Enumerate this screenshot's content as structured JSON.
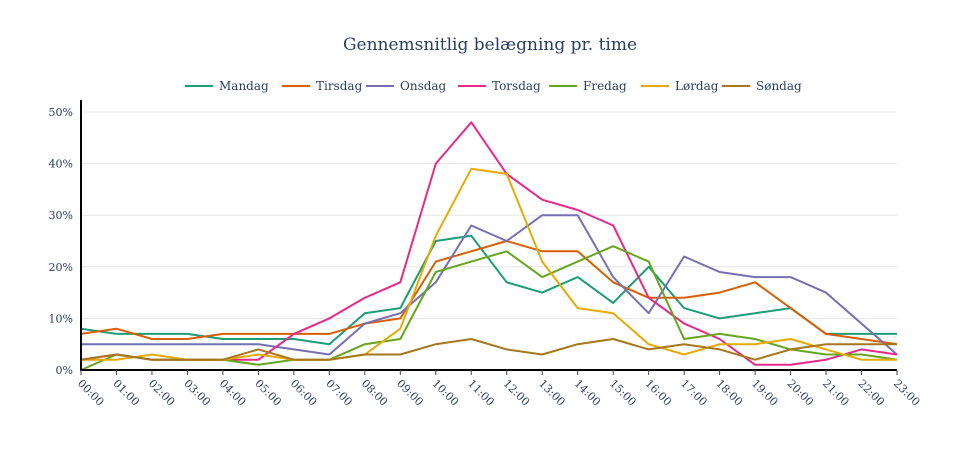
{
  "chart_data": {
    "type": "line",
    "title": "Gennemsnitlig belægning pr. time",
    "xlabel": "",
    "ylabel": "",
    "x": [
      "00:00",
      "01:00",
      "02:00",
      "03:00",
      "04:00",
      "05:00",
      "06:00",
      "07:00",
      "08:00",
      "09:00",
      "10:00",
      "11:00",
      "12:00",
      "13:00",
      "14:00",
      "15:00",
      "16:00",
      "17:00",
      "18:00",
      "19:00",
      "20:00",
      "21:00",
      "22:00",
      "23:00"
    ],
    "ylim": [
      0,
      52
    ],
    "yticks": [
      0,
      10,
      20,
      30,
      40,
      50
    ],
    "ytick_labels": [
      "0%",
      "10%",
      "20%",
      "30%",
      "40%",
      "50%"
    ],
    "grid": true,
    "legend": "top-center",
    "series": [
      {
        "name": "Mandag",
        "color": "#1b9e77",
        "values": [
          8,
          7,
          7,
          7,
          6,
          6,
          6,
          5,
          11,
          12,
          25,
          26,
          17,
          15,
          18,
          13,
          20,
          12,
          10,
          11,
          12,
          7,
          7,
          7
        ]
      },
      {
        "name": "Tirsdag",
        "color": "#d95f02",
        "values": [
          7,
          8,
          6,
          6,
          7,
          7,
          7,
          7,
          9,
          10,
          21,
          23,
          25,
          23,
          23,
          17,
          14,
          14,
          15,
          17,
          12,
          7,
          6,
          5
        ]
      },
      {
        "name": "Onsdag",
        "color": "#7570b3",
        "values": [
          5,
          5,
          5,
          5,
          5,
          5,
          4,
          3,
          9,
          11,
          17,
          28,
          25,
          30,
          30,
          18,
          11,
          22,
          19,
          18,
          18,
          15,
          9,
          3
        ]
      },
      {
        "name": "Torsdag",
        "color": "#e7298a",
        "values": [
          2,
          3,
          2,
          2,
          2,
          2,
          7,
          10,
          14,
          17,
          40,
          48,
          38,
          33,
          31,
          28,
          14,
          9,
          6,
          1,
          1,
          2,
          4,
          3
        ]
      },
      {
        "name": "Fredag",
        "color": "#66a61e",
        "values": [
          0,
          3,
          2,
          2,
          2,
          1,
          2,
          2,
          5,
          6,
          19,
          21,
          23,
          18,
          21,
          24,
          21,
          6,
          7,
          6,
          4,
          3,
          3,
          2
        ]
      },
      {
        "name": "Lørdag",
        "color": "#e6ab02",
        "values": [
          2,
          2,
          3,
          2,
          2,
          3,
          2,
          2,
          3,
          8,
          26,
          39,
          38,
          21,
          12,
          11,
          5,
          3,
          5,
          5,
          6,
          4,
          2,
          2
        ]
      },
      {
        "name": "Søndag",
        "color": "#a6761d",
        "values": [
          2,
          3,
          2,
          2,
          2,
          4,
          2,
          2,
          3,
          3,
          5,
          6,
          4,
          3,
          5,
          6,
          4,
          5,
          4,
          2,
          4,
          5,
          5,
          5
        ]
      }
    ]
  }
}
